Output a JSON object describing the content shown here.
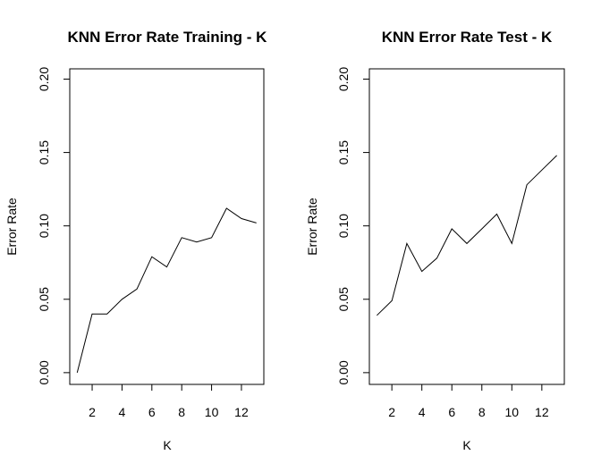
{
  "chart_data": [
    {
      "type": "line",
      "title": "KNN Error Rate Training - K",
      "xlabel": "K",
      "ylabel": "Error Rate",
      "xlim": [
        0.5,
        13.5
      ],
      "ylim": [
        -0.008,
        0.207
      ],
      "xticks": [
        2,
        4,
        6,
        8,
        10,
        12
      ],
      "xtick_labels": [
        "2",
        "4",
        "6",
        "8",
        "10",
        "12"
      ],
      "yticks": [
        0,
        0.05,
        0.1,
        0.15,
        0.2
      ],
      "ytick_labels": [
        "0.00",
        "0.05",
        "0.10",
        "0.15",
        "0.20"
      ],
      "grid": false,
      "x": [
        1,
        2,
        3,
        4,
        5,
        6,
        7,
        8,
        9,
        10,
        11,
        12,
        13
      ],
      "series": [
        {
          "values": [
            0.0,
            0.04,
            0.04,
            0.05,
            0.057,
            0.079,
            0.072,
            0.092,
            0.089,
            0.092,
            0.112,
            0.105,
            0.102
          ]
        }
      ]
    },
    {
      "type": "line",
      "title": "KNN Error Rate  Test - K",
      "xlabel": "K",
      "ylabel": "Error Rate",
      "xlim": [
        0.5,
        13.5
      ],
      "ylim": [
        -0.008,
        0.207
      ],
      "xticks": [
        2,
        4,
        6,
        8,
        10,
        12
      ],
      "xtick_labels": [
        "2",
        "4",
        "6",
        "8",
        "10",
        "12"
      ],
      "yticks": [
        0,
        0.05,
        0.1,
        0.15,
        0.2
      ],
      "ytick_labels": [
        "0.00",
        "0.05",
        "0.10",
        "0.15",
        "0.20"
      ],
      "grid": false,
      "x": [
        1,
        2,
        3,
        4,
        5,
        6,
        7,
        8,
        9,
        10,
        11,
        12,
        13
      ],
      "series": [
        {
          "values": [
            0.039,
            0.049,
            0.088,
            0.069,
            0.078,
            0.098,
            0.088,
            0.098,
            0.108,
            0.088,
            0.128,
            0.138,
            0.148
          ]
        }
      ]
    }
  ]
}
